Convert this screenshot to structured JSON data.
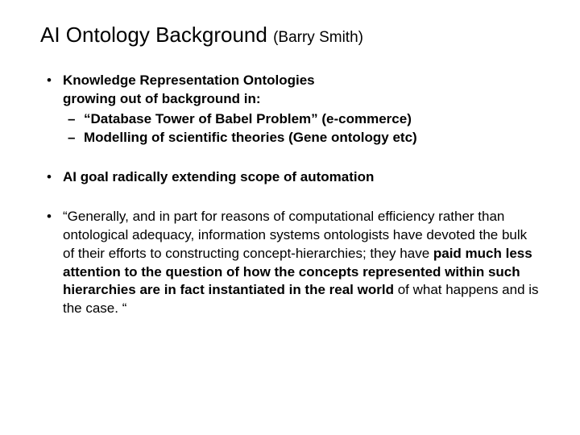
{
  "title_main": "AI Ontology Background ",
  "title_sub": "(Barry Smith)",
  "bullets": [
    {
      "line1": "Knowledge Representation Ontologies",
      "line2": "growing out of background in:",
      "sub": [
        "“Database Tower of Babel Problem” (e-commerce)",
        "Modelling of scientific theories (Gene ontology etc)"
      ]
    },
    {
      "line1": "AI goal radically extending scope of automation"
    },
    {
      "quote_pre": "“Generally, and in part for reasons of computational efficiency rather than ontological adequacy, information systems ontologists have devoted the bulk of their efforts to constructing concept-hierarchies; they have ",
      "quote_bold": "paid much less attention to the question of how the concepts represented within such hierarchies are in fact instantiated in the real world",
      "quote_post": " of what happens and is the case. “"
    }
  ]
}
